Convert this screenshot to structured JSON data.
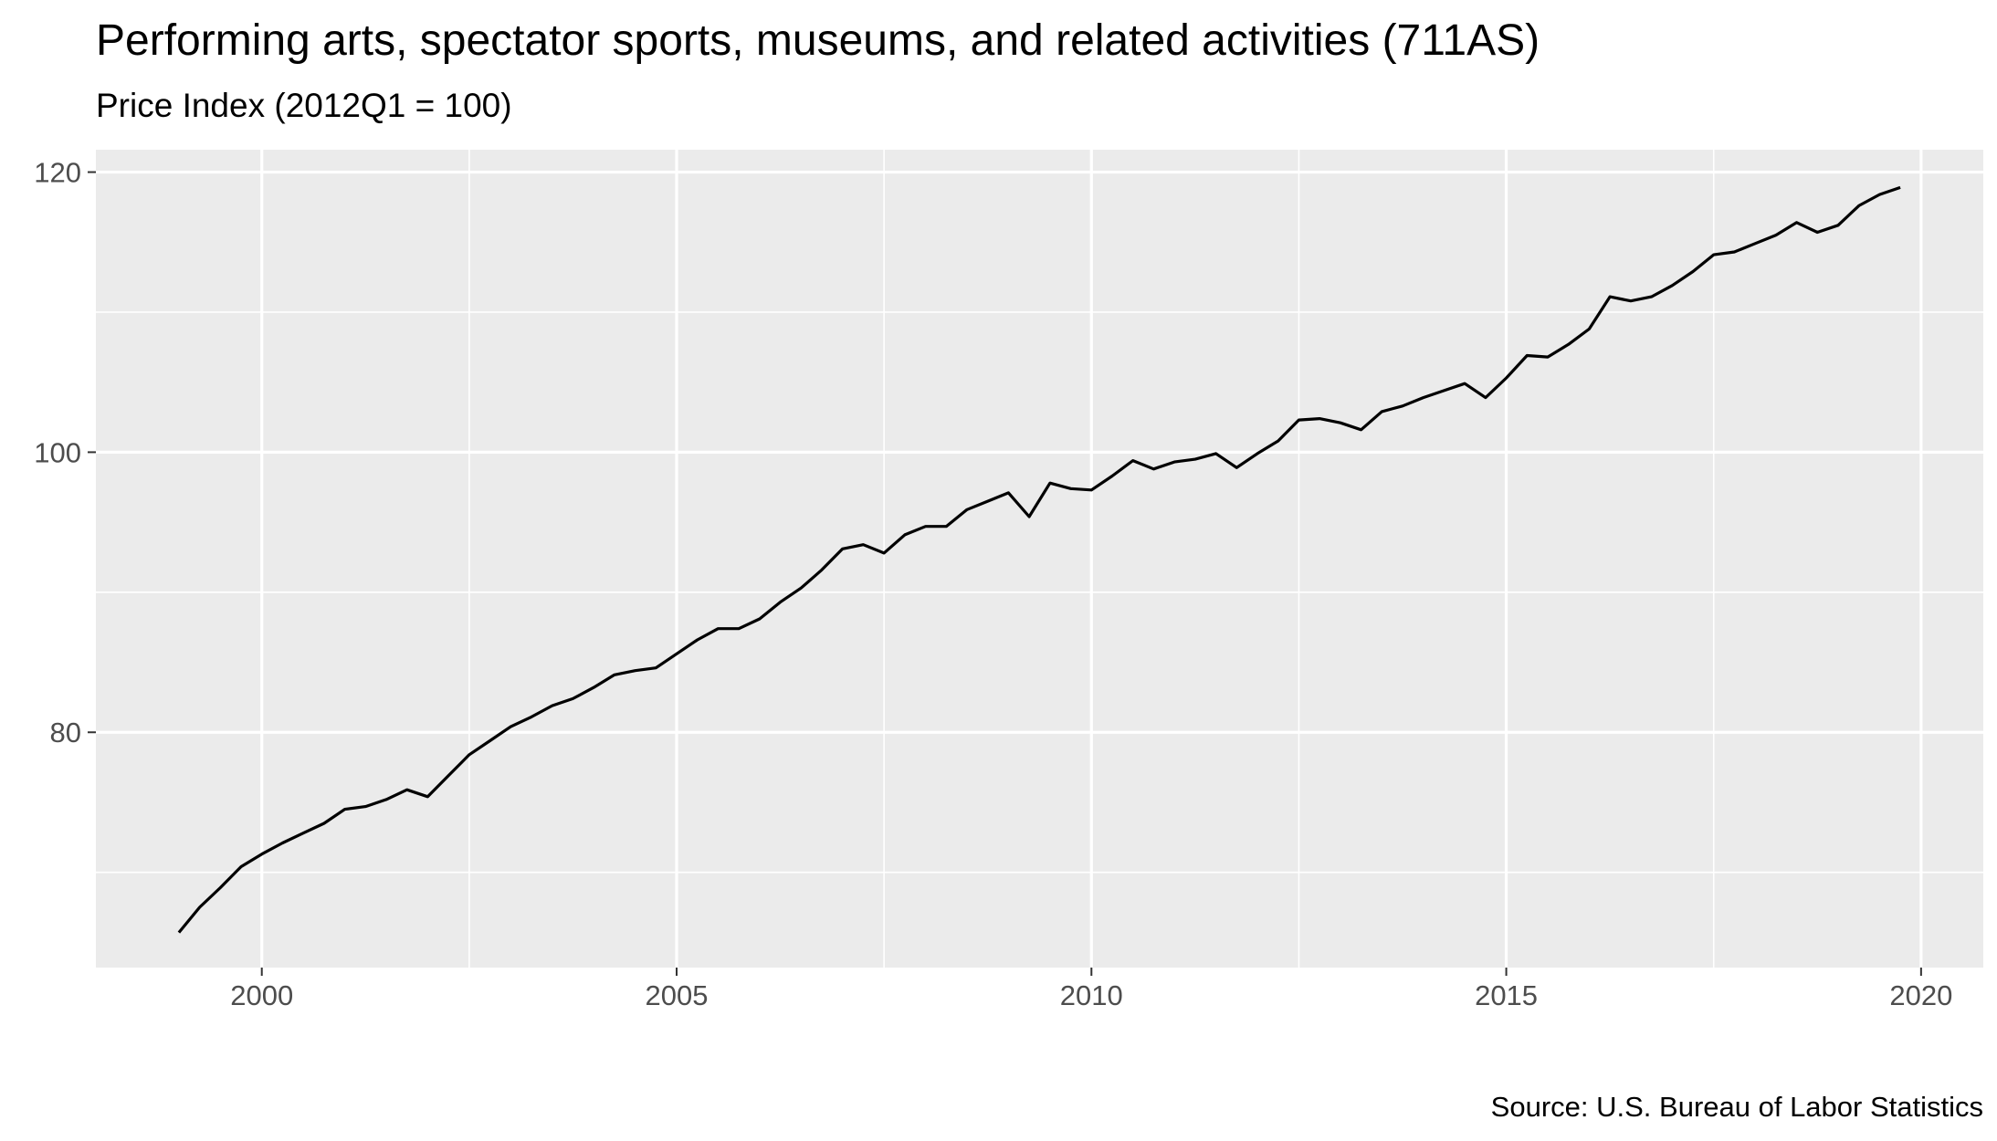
{
  "chart_data": {
    "type": "line",
    "title": "Performing arts, spectator sports, museums, and related activities (711AS)",
    "subtitle": "Price Index (2012Q1 = 100)",
    "caption": "Source: U.S. Bureau of Labor Statistics",
    "xlabel": "",
    "ylabel": "",
    "xlim": [
      1998.0,
      2020.75
    ],
    "ylim": [
      63.2,
      121.6
    ],
    "x_ticks": [
      2000,
      2005,
      2010,
      2015,
      2020
    ],
    "y_ticks": [
      80,
      100,
      120
    ],
    "grid": true,
    "legend": "none",
    "colors": {
      "panel": "#ebebeb",
      "grid": "#ffffff",
      "line": "#000000",
      "tick": "#333333"
    },
    "series": [
      {
        "x": [
          1999.0,
          1999.25,
          1999.5,
          1999.75,
          2000.0,
          2000.25,
          2000.5,
          2000.75,
          2001.0,
          2001.25,
          2001.5,
          2001.75,
          2002.0,
          2002.25,
          2002.5,
          2002.75,
          2003.0,
          2003.25,
          2003.5,
          2003.75,
          2004.0,
          2004.25,
          2004.5,
          2004.75,
          2005.0,
          2005.25,
          2005.5,
          2005.75,
          2006.0,
          2006.25,
          2006.5,
          2006.75,
          2007.0,
          2007.25,
          2007.5,
          2007.75,
          2008.0,
          2008.25,
          2008.5,
          2008.75,
          2009.0,
          2009.25,
          2009.5,
          2009.75,
          2010.0,
          2010.25,
          2010.5,
          2010.75,
          2011.0,
          2011.25,
          2011.5,
          2011.75,
          2012.0,
          2012.25,
          2012.5,
          2012.75,
          2013.0,
          2013.25,
          2013.5,
          2013.75,
          2014.0,
          2014.25,
          2014.5,
          2014.75,
          2015.0,
          2015.25,
          2015.5,
          2015.75,
          2016.0,
          2016.25,
          2016.5,
          2016.75,
          2017.0,
          2017.25,
          2017.5,
          2017.75,
          2018.0,
          2018.25,
          2018.5,
          2018.75,
          2019.0,
          2019.25,
          2019.5,
          2019.75
        ],
        "values": [
          65.7,
          67.5,
          68.9,
          70.4,
          71.3,
          72.1,
          72.8,
          73.5,
          74.5,
          74.7,
          75.2,
          75.9,
          75.4,
          76.9,
          78.4,
          79.4,
          80.4,
          81.1,
          81.9,
          82.4,
          83.2,
          84.1,
          84.4,
          84.6,
          85.6,
          86.6,
          87.4,
          87.4,
          88.1,
          89.3,
          90.3,
          91.6,
          93.1,
          93.4,
          92.8,
          94.1,
          94.7,
          94.7,
          95.9,
          96.5,
          97.1,
          95.4,
          97.8,
          97.4,
          97.3,
          98.3,
          99.4,
          98.8,
          99.3,
          99.5,
          99.9,
          98.9,
          99.9,
          100.8,
          102.3,
          102.4,
          102.1,
          101.6,
          102.9,
          103.3,
          103.9,
          104.4,
          104.9,
          103.9,
          105.3,
          106.9,
          106.8,
          107.7,
          108.8,
          111.1,
          110.8,
          111.1,
          111.9,
          112.9,
          114.1,
          114.3,
          114.9,
          115.5,
          116.4,
          115.7,
          116.2,
          117.6,
          118.4,
          118.9
        ]
      }
    ]
  }
}
